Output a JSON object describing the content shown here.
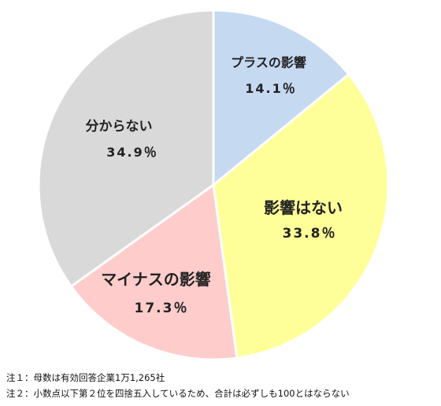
{
  "chart_data": {
    "type": "pie",
    "slices": [
      {
        "label": "プラスの影響",
        "value": 14.1,
        "value_label": "14.1％",
        "color": "#c5d9f1"
      },
      {
        "label": "影響はない",
        "value": 33.8,
        "value_label": "33.8％",
        "color": "#ffff99"
      },
      {
        "label": "マイナスの影響",
        "value": 17.3,
        "value_label": "17.3％",
        "color": "#ffcccc"
      },
      {
        "label": "分からない",
        "value": 34.9,
        "value_label": "34.9％",
        "color": "#d9d9d9"
      }
    ],
    "start": "12 o'clock",
    "direction": "clockwise"
  },
  "notes": [
    "注１：母数は有効回答企業1万1,265社",
    "注２：小数点以下第２位を四捨五入しているため、合計は必ずしも100とはならない"
  ]
}
